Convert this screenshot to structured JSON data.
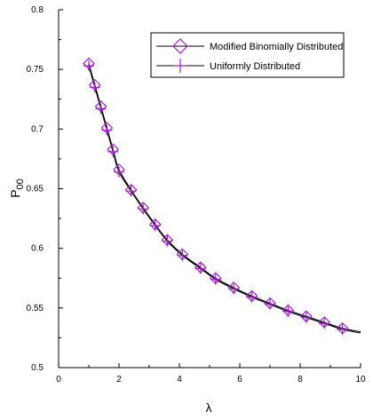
{
  "chart_data": {
    "type": "line",
    "xlabel": "λ",
    "ylabel_main": "P",
    "ylabel_sub": "00",
    "xlim": [
      0,
      10
    ],
    "ylim": [
      0.5,
      0.8
    ],
    "x_ticks": [
      "0",
      "2",
      "4",
      "6",
      "8",
      "10"
    ],
    "y_ticks": [
      "0.5",
      "0.55",
      "0.6",
      "0.65",
      "0.7",
      "0.75",
      "0.8"
    ],
    "grid": false,
    "legend_position": "top-right",
    "colors": {
      "line": "#000000",
      "marker": "#a020c8",
      "axis": "#000000"
    },
    "series": [
      {
        "name": "Modified Binomially Distributed",
        "marker": "diamond-icon",
        "x": [
          1.0,
          1.2,
          1.4,
          1.6,
          1.8,
          2.0,
          2.4,
          2.8,
          3.2,
          3.6,
          4.1,
          4.7,
          5.2,
          5.8,
          6.4,
          7.0,
          7.6,
          8.2,
          8.8,
          9.4
        ],
        "values": [
          0.755,
          0.737,
          0.719,
          0.701,
          0.683,
          0.666,
          0.649,
          0.634,
          0.62,
          0.607,
          0.595,
          0.584,
          0.575,
          0.567,
          0.56,
          0.554,
          0.548,
          0.543,
          0.538,
          0.533
        ]
      },
      {
        "name": "Uniformly Distributed",
        "marker": "plus-icon",
        "x": [
          1.0,
          1.2,
          1.4,
          1.6,
          1.8,
          2.0,
          2.4,
          2.8,
          3.2,
          3.6,
          4.1,
          4.7,
          5.2,
          5.8,
          6.4,
          7.0,
          7.6,
          8.2,
          8.8,
          9.4
        ],
        "values": [
          0.753,
          0.735,
          0.717,
          0.699,
          0.681,
          0.664,
          0.648,
          0.633,
          0.619,
          0.606,
          0.594,
          0.583,
          0.574,
          0.566,
          0.559,
          0.553,
          0.547,
          0.542,
          0.537,
          0.532
        ]
      }
    ]
  }
}
